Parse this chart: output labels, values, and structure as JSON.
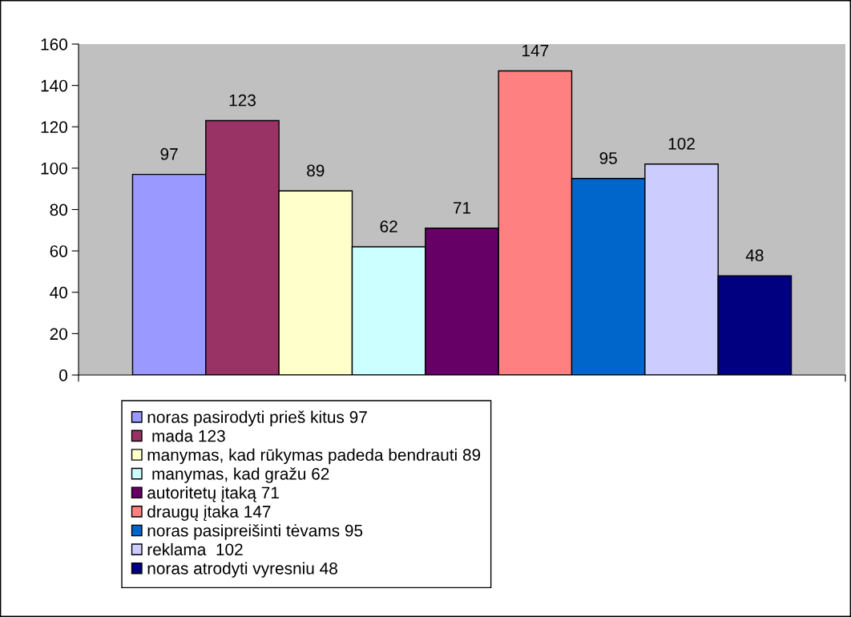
{
  "chart_data": {
    "type": "bar",
    "categories": [
      null
    ],
    "series": [
      {
        "name": "noras pasirodyti prieš kitus 97",
        "color": "#9999ff",
        "values": [
          97
        ]
      },
      {
        "name": " mada 123",
        "color": "#993366",
        "values": [
          123
        ]
      },
      {
        "name": "manymas, kad rūkymas padeda bendrauti 89",
        "color": "#ffffcc",
        "values": [
          89
        ]
      },
      {
        "name": " manymas, kad gražu 62",
        "color": "#ccffff",
        "values": [
          62
        ]
      },
      {
        "name": "autoritetų įtaką 71",
        "color": "#660066",
        "values": [
          71
        ]
      },
      {
        "name": "draugų įtaka 147",
        "color": "#ff8080",
        "values": [
          147
        ]
      },
      {
        "name": "noras pasipreišinti tėvams 95",
        "color": "#0066cc",
        "values": [
          95
        ]
      },
      {
        "name": "reklama  102",
        "color": "#ccccff",
        "values": [
          102
        ]
      },
      {
        "name": "noras atrodyti vyresniu 48",
        "color": "#000080",
        "values": [
          48
        ]
      }
    ],
    "ylim": [
      0,
      160
    ],
    "yticks": [
      0,
      20,
      40,
      60,
      80,
      100,
      120,
      140,
      160
    ],
    "data_labels": true,
    "legend": "bottom",
    "grid": false,
    "tick_labels": "y"
  }
}
